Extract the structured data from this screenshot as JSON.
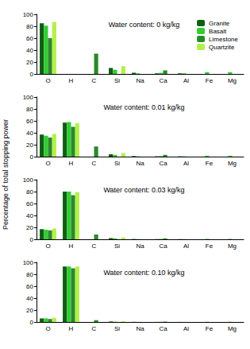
{
  "chart_data": [
    {
      "type": "bar",
      "title": "Water content: 0 kg/kg",
      "categories": [
        "O",
        "H",
        "C",
        "Si",
        "Na",
        "Ca",
        "Al",
        "Fe",
        "Mg"
      ],
      "ylim": [
        0,
        100
      ],
      "yticks": [
        0,
        20,
        40,
        60,
        80,
        100
      ],
      "grid": false,
      "legend": "upper right",
      "series": [
        {
          "name": "Granite",
          "color": "#0f5e14",
          "values": [
            85,
            0,
            0,
            10,
            2,
            1,
            1,
            0,
            0
          ]
        },
        {
          "name": "Basalt",
          "color": "#33cc33",
          "values": [
            81,
            0,
            0,
            7,
            1,
            2,
            1,
            3,
            3
          ]
        },
        {
          "name": "Limestone",
          "color": "#2a8a2a",
          "values": [
            60,
            0,
            34,
            0,
            0,
            6,
            0,
            0,
            0
          ]
        },
        {
          "name": "Quartzite",
          "color": "#b4f04c",
          "values": [
            87,
            0,
            0,
            13,
            0,
            0,
            0,
            0,
            0
          ]
        }
      ]
    },
    {
      "type": "bar",
      "title": "Water content: 0.01 kg/kg",
      "ylabel": "Percentage of total stopping power",
      "categories": [
        "O",
        "H",
        "C",
        "Si",
        "Na",
        "Ca",
        "Al",
        "Fe",
        "Mg"
      ],
      "ylim": [
        0,
        100
      ],
      "yticks": [
        0,
        20,
        40,
        60,
        80,
        100
      ],
      "grid": false,
      "series": [
        {
          "name": "Granite",
          "color": "#0f5e14",
          "values": [
            37,
            57,
            0,
            4,
            1,
            0.5,
            0.5,
            0,
            0
          ]
        },
        {
          "name": "Basalt",
          "color": "#33cc33",
          "values": [
            35,
            58,
            0,
            3,
            0.5,
            1,
            0.5,
            1.5,
            1.5
          ]
        },
        {
          "name": "Limestone",
          "color": "#2a8a2a",
          "values": [
            32,
            50,
            17,
            0,
            0,
            3,
            0,
            0,
            0
          ]
        },
        {
          "name": "Quartzite",
          "color": "#b4f04c",
          "values": [
            38,
            56,
            0,
            6,
            0,
            0,
            0,
            0,
            0
          ]
        }
      ]
    },
    {
      "type": "bar",
      "title": "Water content: 0.03 kg/kg",
      "categories": [
        "O",
        "H",
        "C",
        "Si",
        "Na",
        "Ca",
        "Al",
        "Fe",
        "Mg"
      ],
      "ylim": [
        0,
        100
      ],
      "yticks": [
        0,
        20,
        40,
        60,
        80,
        100
      ],
      "grid": false,
      "series": [
        {
          "name": "Granite",
          "color": "#0f5e14",
          "values": [
            17,
            80,
            0,
            2,
            0.5,
            0.3,
            0.3,
            0,
            0
          ]
        },
        {
          "name": "Basalt",
          "color": "#33cc33",
          "values": [
            16,
            80,
            0,
            1.5,
            0.3,
            0.7,
            0.3,
            0.7,
            0.7
          ]
        },
        {
          "name": "Limestone",
          "color": "#2a8a2a",
          "values": [
            15,
            74,
            8,
            0,
            0,
            1.5,
            0,
            0,
            0
          ]
        },
        {
          "name": "Quartzite",
          "color": "#b4f04c",
          "values": [
            18,
            79,
            0,
            3,
            0,
            0,
            0,
            0,
            0
          ]
        }
      ]
    },
    {
      "type": "bar",
      "title": "Water content: 0.10 kg/kg",
      "categories": [
        "O",
        "H",
        "C",
        "Si",
        "Na",
        "Ca",
        "Al",
        "Fe",
        "Mg"
      ],
      "ylim": [
        0,
        100
      ],
      "yticks": [
        0,
        20,
        40,
        60,
        80,
        100
      ],
      "grid": false,
      "series": [
        {
          "name": "Granite",
          "color": "#0f5e14",
          "values": [
            6,
            93,
            0,
            0.8,
            0.2,
            0.1,
            0.1,
            0,
            0
          ]
        },
        {
          "name": "Basalt",
          "color": "#33cc33",
          "values": [
            6,
            93,
            0,
            0.5,
            0.1,
            0.3,
            0.1,
            0.3,
            0.3
          ]
        },
        {
          "name": "Limestone",
          "color": "#2a8a2a",
          "values": [
            5,
            90,
            3,
            0,
            0,
            0.6,
            0,
            0,
            0
          ]
        },
        {
          "name": "Quartzite",
          "color": "#b4f04c",
          "values": [
            7,
            93,
            0,
            1,
            0,
            0,
            0,
            0,
            0
          ]
        }
      ]
    }
  ]
}
